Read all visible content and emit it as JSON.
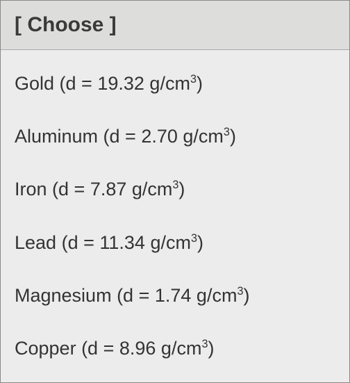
{
  "dropdown": {
    "placeholder": "[ Choose ]",
    "options": [
      {
        "name": "Gold",
        "density": "19.32",
        "unit_prefix": "g/cm",
        "unit_exp": "3"
      },
      {
        "name": "Aluminum",
        "density": "2.70",
        "unit_prefix": "g/cm",
        "unit_exp": "3"
      },
      {
        "name": "Iron",
        "density": "7.87",
        "unit_prefix": "g/cm",
        "unit_exp": "3"
      },
      {
        "name": "Lead",
        "density": "11.34",
        "unit_prefix": "g/cm",
        "unit_exp": "3"
      },
      {
        "name": "Magnesium",
        "density": "1.74",
        "unit_prefix": "g/cm",
        "unit_exp": "3"
      },
      {
        "name": "Copper",
        "density": "8.96",
        "unit_prefix": "g/cm",
        "unit_exp": "3"
      }
    ]
  },
  "colors": {
    "background": "#ebeceb",
    "header_bg": "#dddedc",
    "border": "#888",
    "text": "#333"
  }
}
